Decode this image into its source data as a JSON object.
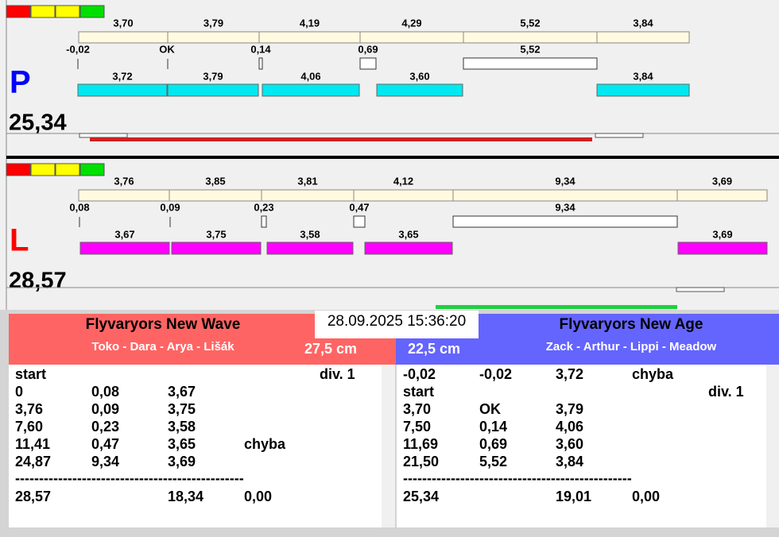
{
  "panels": [
    {
      "letter": "P",
      "time": "25,34",
      "top_labels": [
        "3,70",
        "3,79",
        "4,19",
        "4,29",
        "5,52",
        "3,84"
      ],
      "mid_labels": [
        "-0,02",
        "OK",
        "0,14",
        "0,69",
        "5,52"
      ],
      "bottom_labels": [
        "3,72",
        "3,79",
        "4,06",
        "3,60",
        "3,84"
      ]
    },
    {
      "letter": "L",
      "time": "28,57",
      "top_labels": [
        "3,76",
        "3,85",
        "3,81",
        "4,12",
        "9,34",
        "3,69"
      ],
      "mid_labels": [
        "0,08",
        "0,09",
        "0,23",
        "0,47",
        "9,34"
      ],
      "bottom_labels": [
        "3,67",
        "3,75",
        "3,58",
        "3,65",
        "3,69"
      ]
    }
  ],
  "timestamp": "28.09.2025 15:36:20",
  "teams": [
    {
      "name": "Flyvaryors New Wave",
      "members": "Toko - Dara - Arya - Lišák",
      "length": "27,5 cm",
      "rows": [
        [
          "start",
          "div. 1"
        ],
        [
          "0",
          "0,08",
          "3,67"
        ],
        [
          "3,76",
          "0,09",
          "3,75"
        ],
        [
          "7,60",
          "0,23",
          "3,58"
        ],
        [
          "11,41",
          "0,47",
          "3,65",
          "chyba"
        ],
        [
          "24,87",
          "9,34",
          "3,69"
        ]
      ],
      "separator": "------------------------------------------------",
      "total": [
        "28,57",
        "18,34",
        "0,00"
      ]
    },
    {
      "name": "Flyvaryors New Age",
      "members": "Zack - Arthur - Lippi - Meadow",
      "length": "22,5 cm",
      "rows": [
        [
          "-0,02",
          "-0,02",
          "3,72",
          "chyba"
        ],
        [
          "start",
          "div. 1"
        ],
        [
          "3,70",
          "OK",
          "3,79"
        ],
        [
          "7,50",
          "0,14",
          "4,06"
        ],
        [
          "11,69",
          "0,69",
          "3,60"
        ],
        [
          "21,50",
          "5,52",
          "3,84"
        ]
      ],
      "separator": "------------------------------------------------",
      "total": [
        "25,34",
        "19,01",
        "0,00"
      ]
    }
  ]
}
